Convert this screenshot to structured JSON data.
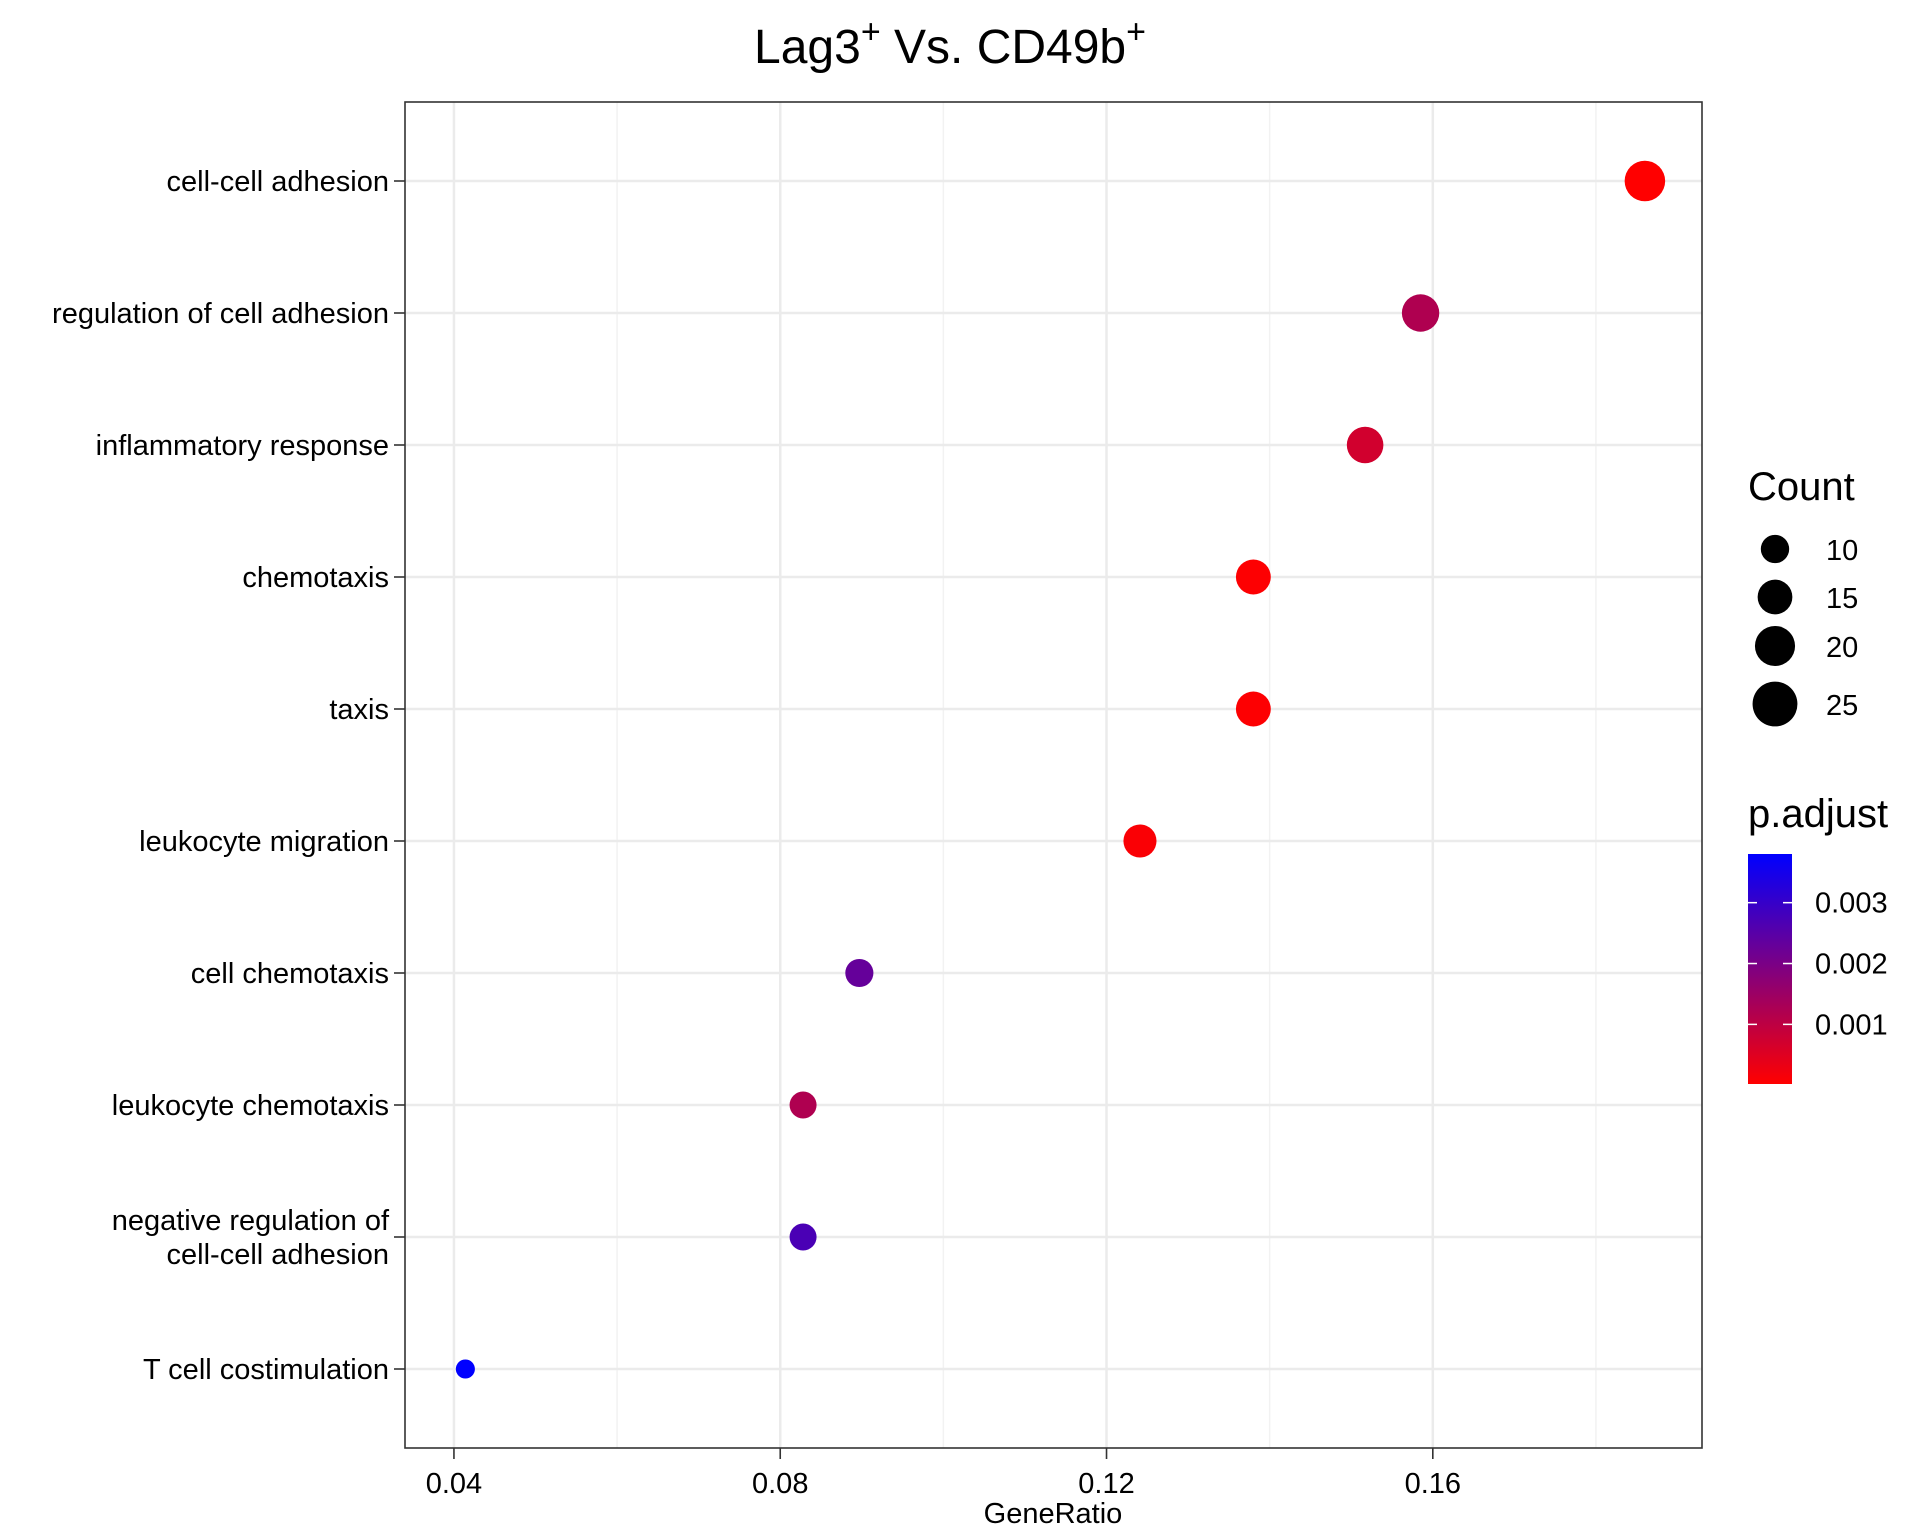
{
  "chart_data": {
    "type": "scatter",
    "title_main": "Lag3",
    "title_sup1": "+",
    "title_mid": " Vs. CD49b",
    "title_sup2": "+",
    "xlabel": "GeneRatio",
    "ylabel": "",
    "xlim": [
      0.034,
      0.193
    ],
    "x_ticks": [
      0.04,
      0.08,
      0.12,
      0.16
    ],
    "x_tick_labels": [
      "0.04",
      "0.08",
      "0.12",
      "0.16"
    ],
    "grid": true,
    "categories": [
      "cell-cell adhesion",
      "regulation of cell adhesion",
      "inflammatory response",
      "chemotaxis",
      "taxis",
      "leukocyte migration",
      "cell chemotaxis",
      "leukocyte chemotaxis",
      "negative regulation of cell-cell adhesion",
      "T cell costimulation"
    ],
    "category_label_lines": [
      [
        "cell-cell adhesion"
      ],
      [
        "regulation of cell adhesion"
      ],
      [
        "inflammatory response"
      ],
      [
        "chemotaxis"
      ],
      [
        "taxis"
      ],
      [
        "leukocyte migration"
      ],
      [
        "cell chemotaxis"
      ],
      [
        "leukocyte chemotaxis"
      ],
      [
        "negative regulation of",
        "cell-cell adhesion"
      ],
      [
        "T cell costimulation"
      ]
    ],
    "points": [
      {
        "term": "cell-cell adhesion",
        "gene_ratio": 0.186,
        "count": 27,
        "p_adjust": 2e-05
      },
      {
        "term": "regulation of cell adhesion",
        "gene_ratio": 0.1585,
        "count": 23,
        "p_adjust": 0.0012
      },
      {
        "term": "inflammatory response",
        "gene_ratio": 0.1517,
        "count": 22,
        "p_adjust": 0.0007
      },
      {
        "term": "chemotaxis",
        "gene_ratio": 0.138,
        "count": 20,
        "p_adjust": 5e-05
      },
      {
        "term": "taxis",
        "gene_ratio": 0.138,
        "count": 20,
        "p_adjust": 5e-05
      },
      {
        "term": "leukocyte migration",
        "gene_ratio": 0.1241,
        "count": 18,
        "p_adjust": 0.0001
      },
      {
        "term": "cell chemotaxis",
        "gene_ratio": 0.0897,
        "count": 13,
        "p_adjust": 0.0023
      },
      {
        "term": "leukocyte chemotaxis",
        "gene_ratio": 0.0828,
        "count": 12,
        "p_adjust": 0.0012
      },
      {
        "term": "negative regulation of cell-cell adhesion",
        "gene_ratio": 0.0828,
        "count": 12,
        "p_adjust": 0.0027
      },
      {
        "term": "T cell costimulation",
        "gene_ratio": 0.0414,
        "count": 6,
        "p_adjust": 0.0038
      }
    ],
    "size_legend": {
      "title": "Count",
      "values": [
        10,
        15,
        20,
        25
      ],
      "labels": [
        "10",
        "15",
        "20",
        "25"
      ]
    },
    "color_legend": {
      "title": "p.adjust",
      "range": [
        2e-05,
        0.0038
      ],
      "ticks": [
        0.003,
        0.002,
        0.001
      ],
      "tick_labels": [
        "0.003",
        "0.002",
        "0.001"
      ],
      "low_color": "#ff0000",
      "high_color": "#0000ff"
    }
  }
}
